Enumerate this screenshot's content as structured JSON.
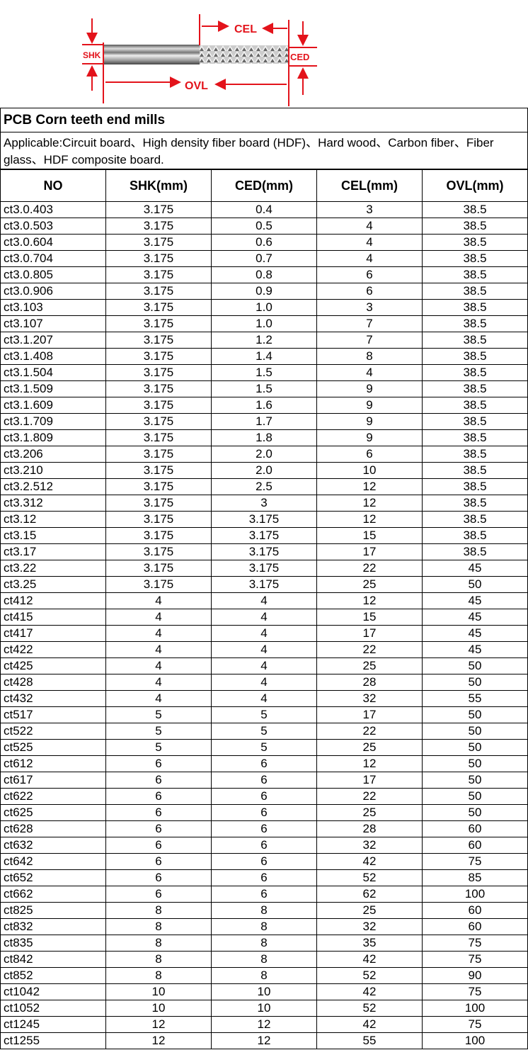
{
  "diagram": {
    "labels": {
      "shk": "SHK",
      "cel": "CEL",
      "ced": "CED",
      "ovl": "OVL"
    },
    "accent_color": "#e3131b"
  },
  "title": "PCB Corn teeth end mills",
  "applicable": "Applicable:Circuit board、High density fiber board (HDF)、Hard wood、Carbon fiber、Fiber glass、HDF composite board.",
  "table": {
    "headers": [
      "NO",
      "SHK(mm)",
      "CED(mm)",
      "CEL(mm)",
      "OVL(mm)"
    ],
    "rows": [
      [
        "ct3.0.403",
        "3.175",
        "0.4",
        "3",
        "38.5"
      ],
      [
        "ct3.0.503",
        "3.175",
        "0.5",
        "4",
        "38.5"
      ],
      [
        "ct3.0.604",
        "3.175",
        "0.6",
        "4",
        "38.5"
      ],
      [
        "ct3.0.704",
        "3.175",
        "0.7",
        "4",
        "38.5"
      ],
      [
        "ct3.0.805",
        "3.175",
        "0.8",
        "6",
        "38.5"
      ],
      [
        "ct3.0.906",
        "3.175",
        "0.9",
        "6",
        "38.5"
      ],
      [
        "ct3.103",
        "3.175",
        "1.0",
        "3",
        "38.5"
      ],
      [
        "ct3.107",
        "3.175",
        "1.0",
        "7",
        "38.5"
      ],
      [
        "ct3.1.207",
        "3.175",
        "1.2",
        "7",
        "38.5"
      ],
      [
        "ct3.1.408",
        "3.175",
        "1.4",
        "8",
        "38.5"
      ],
      [
        "ct3.1.504",
        "3.175",
        "1.5",
        "4",
        "38.5"
      ],
      [
        "ct3.1.509",
        "3.175",
        "1.5",
        "9",
        "38.5"
      ],
      [
        "ct3.1.609",
        "3.175",
        "1.6",
        "9",
        "38.5"
      ],
      [
        "ct3.1.709",
        "3.175",
        "1.7",
        "9",
        "38.5"
      ],
      [
        "ct3.1.809",
        "3.175",
        "1.8",
        "9",
        "38.5"
      ],
      [
        "ct3.206",
        "3.175",
        "2.0",
        "6",
        "38.5"
      ],
      [
        "ct3.210",
        "3.175",
        "2.0",
        "10",
        "38.5"
      ],
      [
        "ct3.2.512",
        "3.175",
        "2.5",
        "12",
        "38.5"
      ],
      [
        "ct3.312",
        "3.175",
        "3",
        "12",
        "38.5"
      ],
      [
        "ct3.12",
        "3.175",
        "3.175",
        "12",
        "38.5"
      ],
      [
        "ct3.15",
        "3.175",
        "3.175",
        "15",
        "38.5"
      ],
      [
        "ct3.17",
        "3.175",
        "3.175",
        "17",
        "38.5"
      ],
      [
        "ct3.22",
        "3.175",
        "3.175",
        "22",
        "45"
      ],
      [
        "ct3.25",
        "3.175",
        "3.175",
        "25",
        "50"
      ],
      [
        "ct412",
        "4",
        "4",
        "12",
        "45"
      ],
      [
        "ct415",
        "4",
        "4",
        "15",
        "45"
      ],
      [
        "ct417",
        "4",
        "4",
        "17",
        "45"
      ],
      [
        "ct422",
        "4",
        "4",
        "22",
        "45"
      ],
      [
        "ct425",
        "4",
        "4",
        "25",
        "50"
      ],
      [
        "ct428",
        "4",
        "4",
        "28",
        "50"
      ],
      [
        "ct432",
        "4",
        "4",
        "32",
        "55"
      ],
      [
        "ct517",
        "5",
        "5",
        "17",
        "50"
      ],
      [
        "ct522",
        "5",
        "5",
        "22",
        "50"
      ],
      [
        "ct525",
        "5",
        "5",
        "25",
        "50"
      ],
      [
        "ct612",
        "6",
        "6",
        "12",
        "50"
      ],
      [
        "ct617",
        "6",
        "6",
        "17",
        "50"
      ],
      [
        "ct622",
        "6",
        "6",
        "22",
        "50"
      ],
      [
        "ct625",
        "6",
        "6",
        "25",
        "50"
      ],
      [
        "ct628",
        "6",
        "6",
        "28",
        "60"
      ],
      [
        "ct632",
        "6",
        "6",
        "32",
        "60"
      ],
      [
        "ct642",
        "6",
        "6",
        "42",
        "75"
      ],
      [
        "ct652",
        "6",
        "6",
        "52",
        "85"
      ],
      [
        "ct662",
        "6",
        "6",
        "62",
        "100"
      ],
      [
        "ct825",
        "8",
        "8",
        "25",
        "60"
      ],
      [
        "ct832",
        "8",
        "8",
        "32",
        "60"
      ],
      [
        "ct835",
        "8",
        "8",
        "35",
        "75"
      ],
      [
        "ct842",
        "8",
        "8",
        "42",
        "75"
      ],
      [
        "ct852",
        "8",
        "8",
        "52",
        "90"
      ],
      [
        "ct1042",
        "10",
        "10",
        "42",
        "75"
      ],
      [
        "ct1052",
        "10",
        "10",
        "52",
        "100"
      ],
      [
        "ct1245",
        "12",
        "12",
        "42",
        "75"
      ],
      [
        "ct1255",
        "12",
        "12",
        "55",
        "100"
      ]
    ]
  }
}
